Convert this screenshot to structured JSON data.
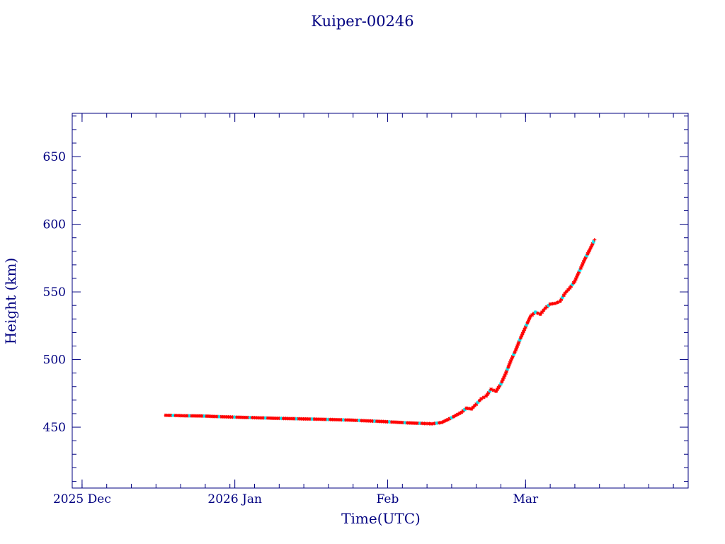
{
  "chart_data": {
    "type": "scatter",
    "title": "Kuiper-00246",
    "xlabel": "Time(UTC)",
    "ylabel": "Height (km)",
    "xlim": [
      "2025-11-29",
      "2026-04-03"
    ],
    "ylim": [
      405,
      682
    ],
    "y_ticks": [
      450,
      500,
      550,
      600,
      650
    ],
    "x_ticks": [
      {
        "date": "2025-12-01",
        "label": "2025 Dec"
      },
      {
        "date": "2026-01-01",
        "label": "2026 Jan"
      },
      {
        "date": "2026-02-01",
        "label": "Feb"
      },
      {
        "date": "2026-03-01",
        "label": "Mar"
      }
    ],
    "grid": false,
    "colors": {
      "frame": "#000080",
      "series_primary": "#ff0000",
      "series_secondary": "#00e5ee"
    },
    "points": [
      [
        "2025-12-18",
        458.8
      ],
      [
        "2025-12-20",
        458.6
      ],
      [
        "2025-12-22",
        458.4
      ],
      [
        "2025-12-25",
        458.3
      ],
      [
        "2025-12-28",
        457.9
      ],
      [
        "2026-01-01",
        457.4
      ],
      [
        "2026-01-05",
        457.0
      ],
      [
        "2026-01-10",
        456.5
      ],
      [
        "2026-01-14",
        456.2
      ],
      [
        "2026-01-19",
        455.8
      ],
      [
        "2026-01-24",
        455.3
      ],
      [
        "2026-01-29",
        454.5
      ],
      [
        "2026-02-01",
        454.0
      ],
      [
        "2026-02-05",
        453.2
      ],
      [
        "2026-02-08",
        452.8
      ],
      [
        "2026-02-10",
        452.5
      ],
      [
        "2026-02-12",
        453.5
      ],
      [
        "2026-02-14",
        457.0
      ],
      [
        "2026-02-16",
        461.0
      ],
      [
        "2026-02-17",
        464.0
      ],
      [
        "2026-02-18",
        463.5
      ],
      [
        "2026-02-19",
        467.0
      ],
      [
        "2026-02-20",
        471.0
      ],
      [
        "2026-02-21",
        473.0
      ],
      [
        "2026-02-22",
        478.0
      ],
      [
        "2026-02-23",
        476.5
      ],
      [
        "2026-02-24",
        482.0
      ],
      [
        "2026-02-25",
        490.0
      ],
      [
        "2026-02-26",
        499.0
      ],
      [
        "2026-02-27",
        507.0
      ],
      [
        "2026-02-28",
        516.0
      ],
      [
        "2026-03-01",
        524.0
      ],
      [
        "2026-03-02",
        532.0
      ],
      [
        "2026-03-03",
        535.0
      ],
      [
        "2026-03-04",
        533.5
      ],
      [
        "2026-03-05",
        538.0
      ],
      [
        "2026-03-06",
        541.0
      ],
      [
        "2026-03-07",
        541.5
      ],
      [
        "2026-03-08",
        543.0
      ],
      [
        "2026-03-09",
        549.0
      ],
      [
        "2026-03-10",
        553.0
      ],
      [
        "2026-03-11",
        558.0
      ],
      [
        "2026-03-12",
        566.0
      ],
      [
        "2026-03-13",
        574.0
      ],
      [
        "2026-03-14",
        581.0
      ],
      [
        "2026-03-15",
        588.5
      ]
    ]
  }
}
